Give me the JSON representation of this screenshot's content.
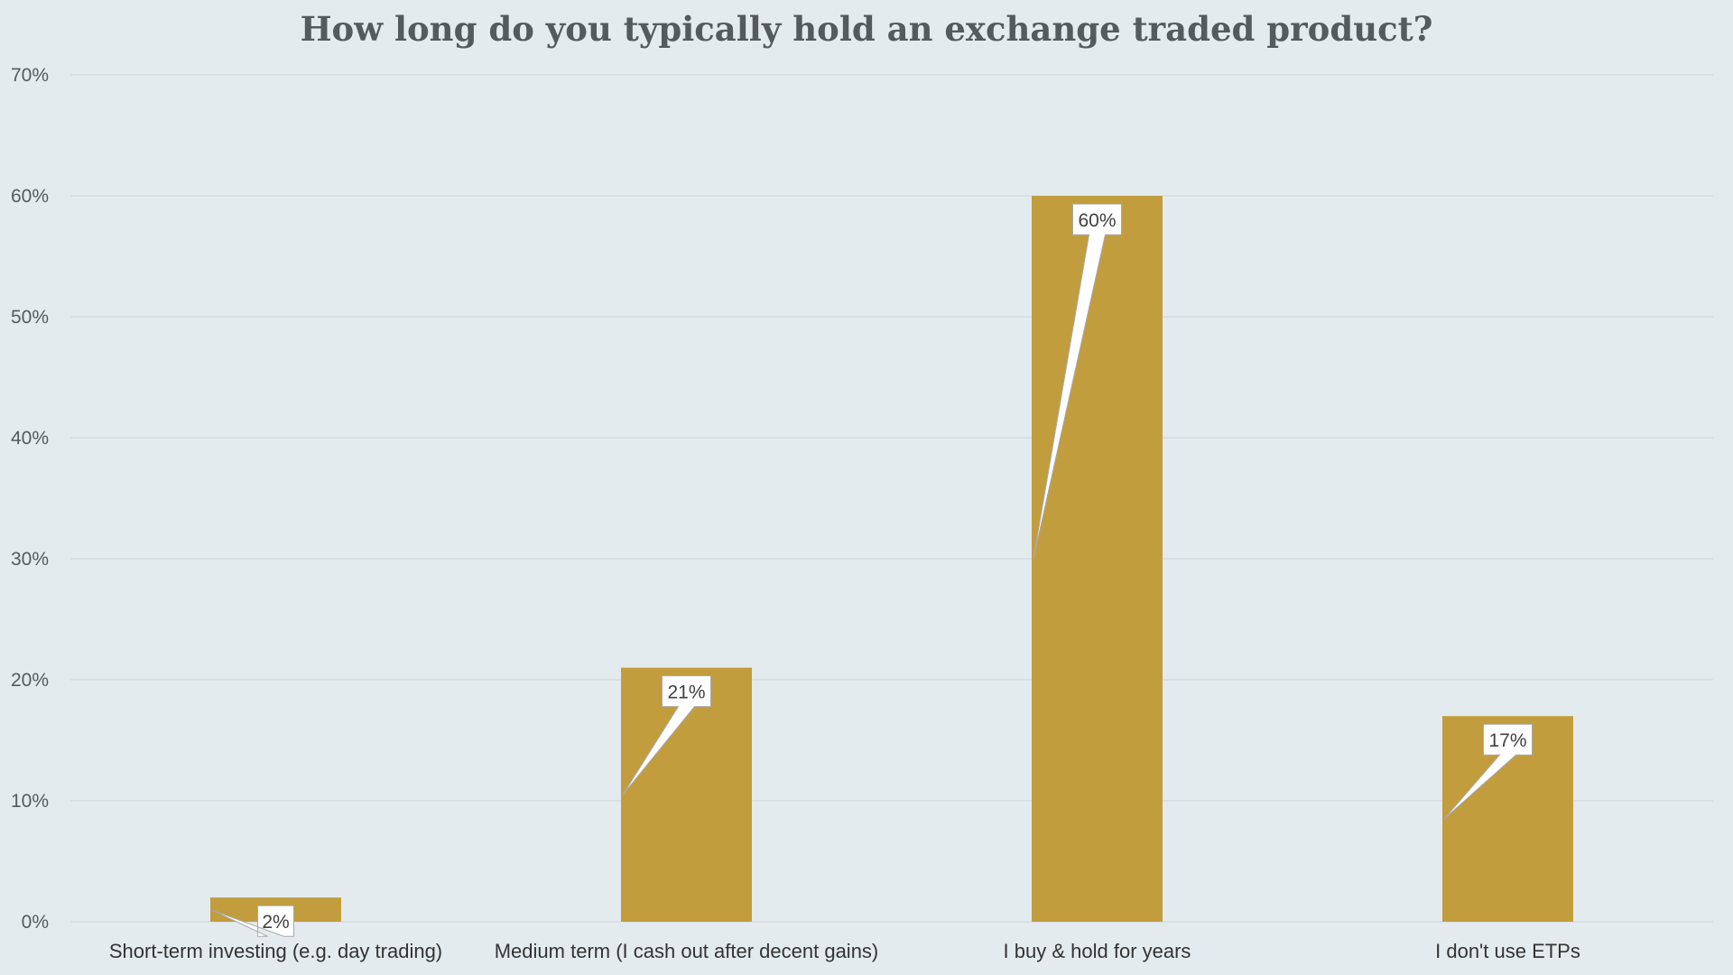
{
  "chart_data": {
    "type": "bar",
    "title": "How long do you typically hold an exchange traded product?",
    "categories": [
      "Short-term investing (e.g. day trading)",
      "Medium term (I cash out after decent gains)",
      "I buy & hold for years",
      "I don't use ETPs"
    ],
    "values": [
      2,
      21,
      60,
      17
    ],
    "data_labels": [
      "2%",
      "21%",
      "60%",
      "17%"
    ],
    "ylim": [
      0,
      70
    ],
    "yticks": [
      0,
      10,
      20,
      30,
      40,
      50,
      60,
      70
    ],
    "ytick_labels": [
      "0%",
      "10%",
      "20%",
      "30%",
      "40%",
      "50%",
      "60%",
      "70%"
    ],
    "xlabel": "",
    "ylabel": "",
    "grid": true,
    "legend": "none",
    "colors": {
      "bar": "#c29d3e",
      "background": "#e4ebee",
      "grid": "#d3d8db"
    }
  }
}
